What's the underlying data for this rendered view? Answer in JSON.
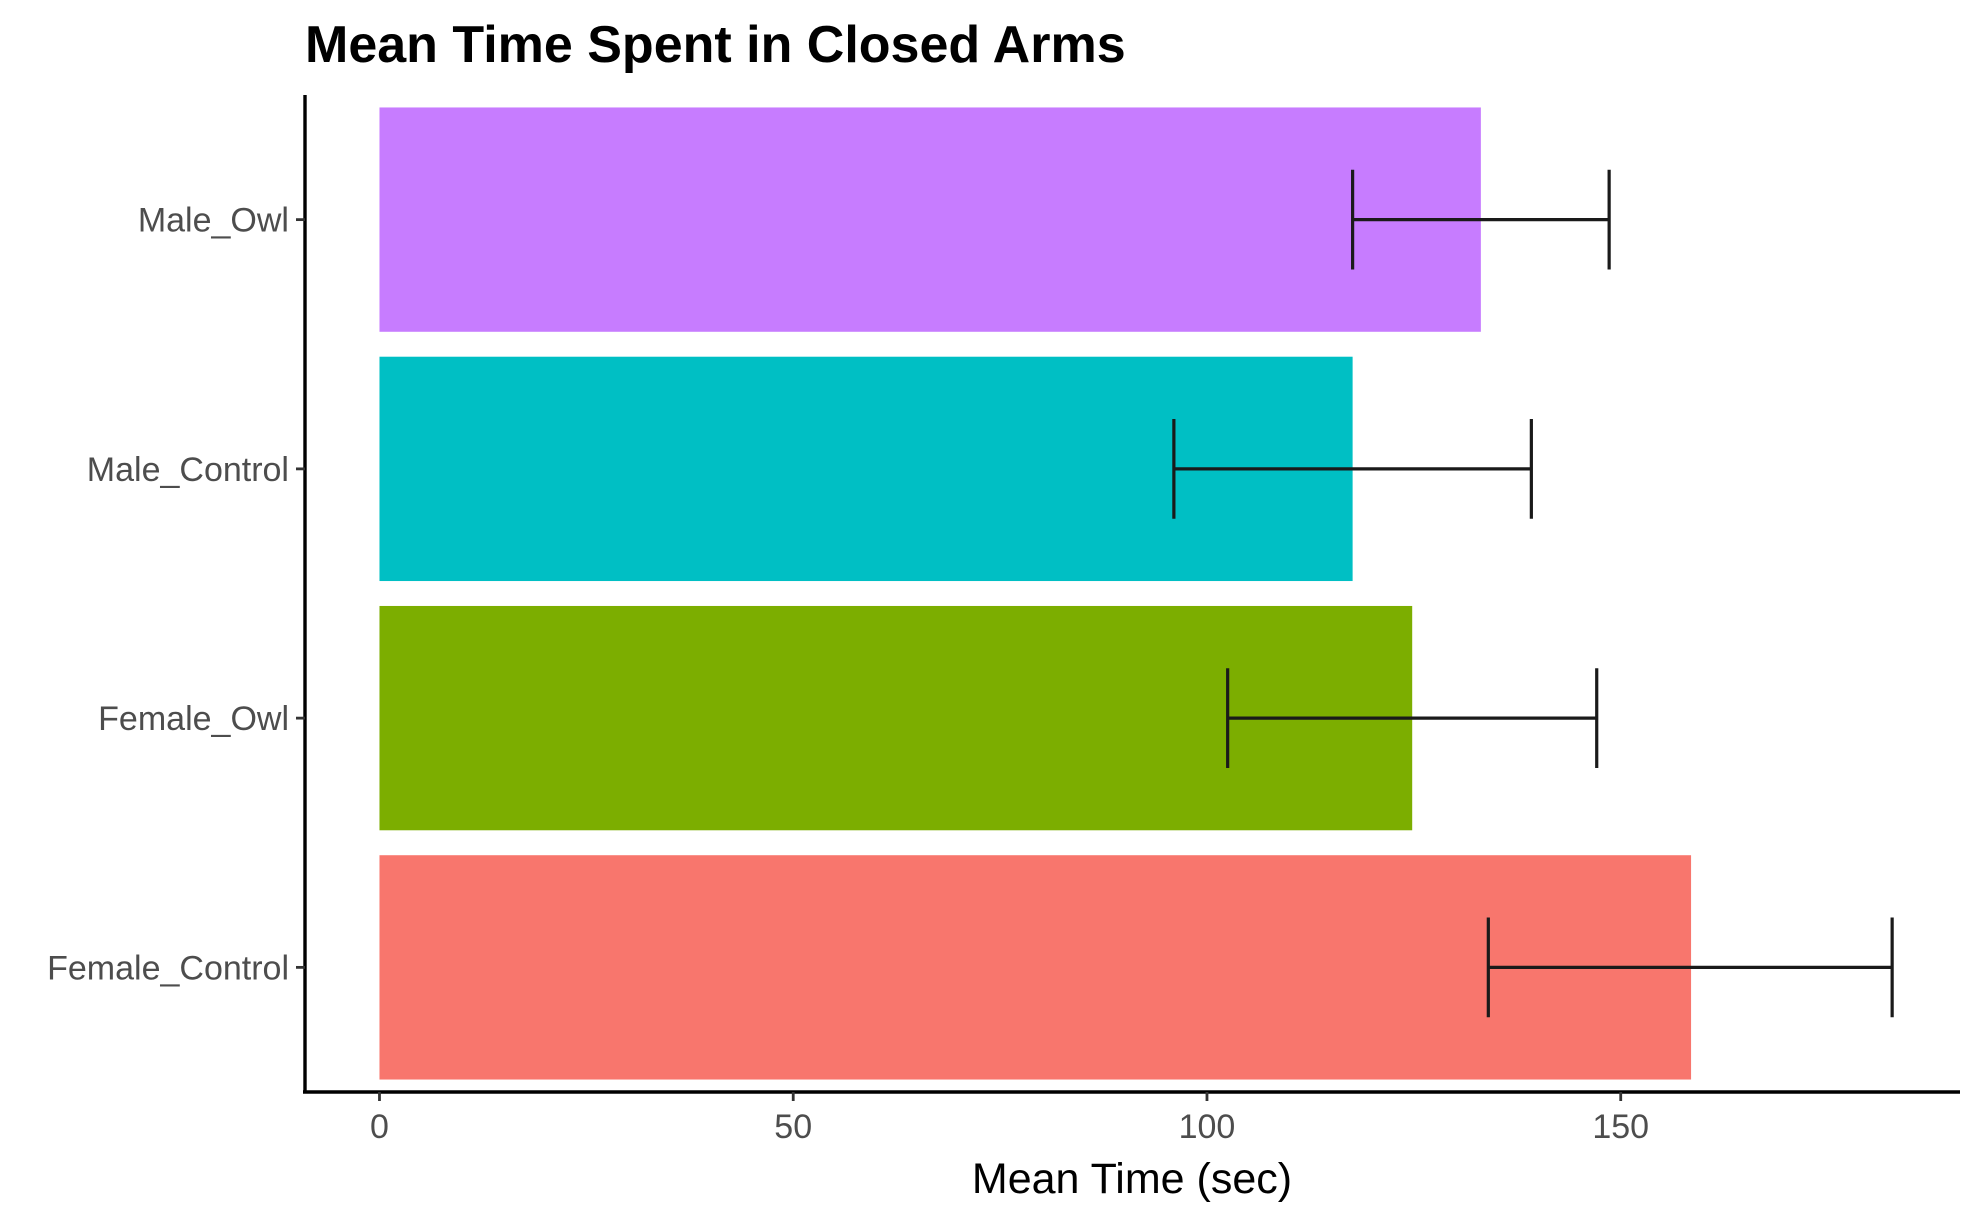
{
  "chart_data": {
    "type": "bar",
    "orientation": "horizontal",
    "title": "Mean Time Spent in Closed Arms",
    "xlabel": "Mean Time (sec)",
    "ylabel": "",
    "xlim": [
      -9,
      191
    ],
    "xticks": [
      0,
      50,
      100,
      150
    ],
    "xtick_labels": [
      "0",
      "50",
      "100",
      "150"
    ],
    "categories": [
      "Female_Control",
      "Female_Owl",
      "Male_Control",
      "Male_Owl"
    ],
    "values": [
      158.5,
      124.8,
      117.6,
      133.1
    ],
    "error_low": [
      134.0,
      102.5,
      96.0,
      117.6
    ],
    "error_high": [
      182.8,
      147.1,
      139.2,
      148.6
    ],
    "colors": [
      "#F8766D",
      "#7CAE00",
      "#00BFC4",
      "#C77CFF"
    ],
    "grid": false,
    "legend": "none"
  }
}
